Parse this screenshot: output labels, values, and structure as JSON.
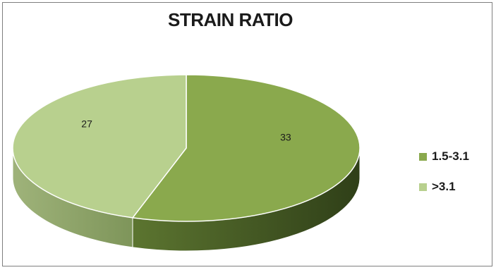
{
  "chart_data": {
    "type": "pie",
    "title": "STRAIN RATIO",
    "style": "3d",
    "categories": [
      "1.5-3.1",
      ">3.1"
    ],
    "values": [
      33,
      27
    ],
    "data_labels": [
      "33",
      "27"
    ],
    "colors": [
      "#8aa94d",
      "#b8d08e"
    ],
    "legend_position": "right"
  }
}
